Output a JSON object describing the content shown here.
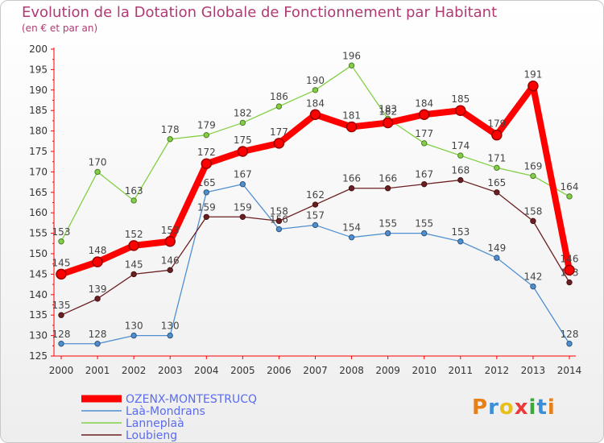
{
  "chart_data": {
    "type": "line",
    "title": "Evolution de la Dotation Globale de Fonctionnement par Habitant",
    "subtitle": "(en € et par an)",
    "x": [
      "2000",
      "2001",
      "2002",
      "2003",
      "2004",
      "2005",
      "2006",
      "2007",
      "2008",
      "2009",
      "2010",
      "2011",
      "2012",
      "2013",
      "2014"
    ],
    "ylim": [
      125,
      200
    ],
    "yticks": [
      "125",
      "130",
      "135",
      "140",
      "145",
      "150",
      "155",
      "160",
      "165",
      "170",
      "175",
      "180",
      "185",
      "190",
      "195",
      "200"
    ],
    "grid": false,
    "legend_position": "bottom-left",
    "series": [
      {
        "name": "OZENX-MONTESTRUCQ",
        "color": "#ff0000",
        "values": [
          145,
          148,
          152,
          153,
          172,
          175,
          177,
          184,
          181,
          182,
          184,
          185,
          179,
          191,
          146
        ]
      },
      {
        "name": "Laà-Mondrans",
        "color": "#4f8fd0",
        "values": [
          128,
          128,
          130,
          130,
          165,
          167,
          156,
          157,
          154,
          155,
          155,
          153,
          149,
          142,
          128
        ]
      },
      {
        "name": "Lanneplaà",
        "color": "#82cf45",
        "values": [
          153,
          170,
          163,
          178,
          179,
          182,
          186,
          190,
          196,
          183,
          177,
          174,
          171,
          169,
          164
        ]
      },
      {
        "name": "Loubieng",
        "color": "#6b1f22",
        "values": [
          135,
          139,
          145,
          146,
          159,
          159,
          158,
          162,
          166,
          166,
          167,
          168,
          165,
          158,
          143
        ]
      }
    ]
  },
  "logo": {
    "text": "Proxiti",
    "letters": [
      "P",
      "r",
      "o",
      "x",
      "i",
      "t",
      "i"
    ]
  }
}
